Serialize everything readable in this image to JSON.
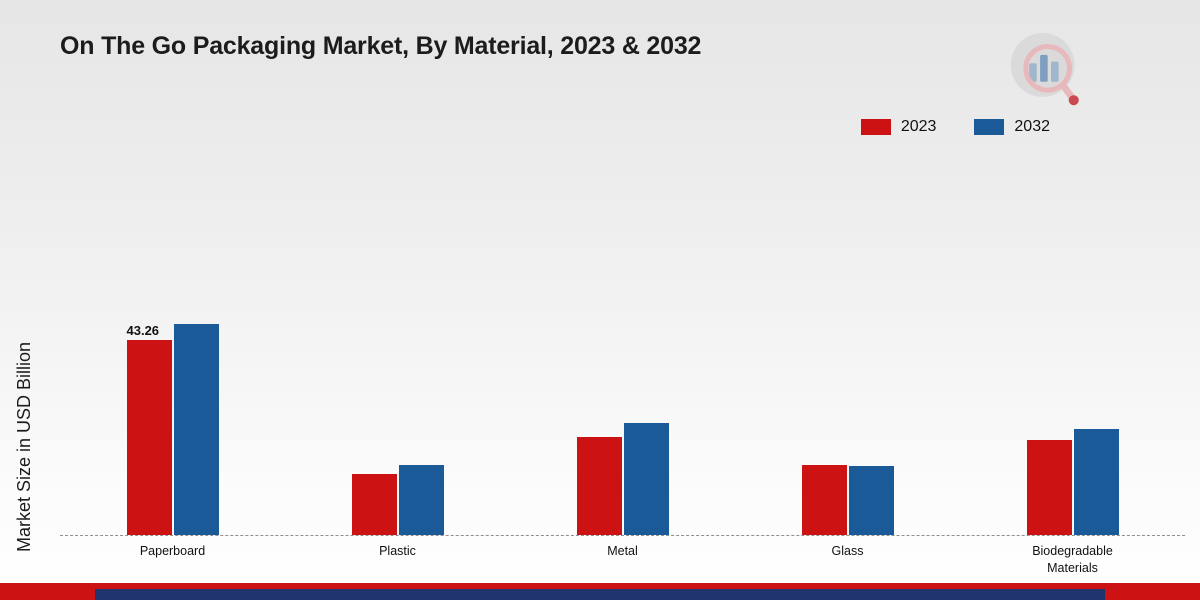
{
  "chart": {
    "title": "On The Go Packaging Market, By Material, 2023 & 2032",
    "ylabel": "Market Size in USD Billion"
  },
  "chart_data": {
    "type": "bar",
    "title": "On The Go Packaging Market, By Material, 2023 & 2032",
    "xlabel": "",
    "ylabel": "Market Size in USD Billion",
    "categories": [
      "Paperboard",
      "Plastic",
      "Metal",
      "Glass",
      "Biodegradable Materials"
    ],
    "series": [
      {
        "name": "2023",
        "color": "#cc1212",
        "values": [
          43.26,
          13.5,
          21.8,
          15.5,
          21.2
        ]
      },
      {
        "name": "2032",
        "color": "#1b5a99",
        "values": [
          46.9,
          15.6,
          24.9,
          15.3,
          23.6
        ]
      }
    ],
    "bar_label": {
      "category": "Paperboard",
      "series": "2023",
      "text": "43.26"
    },
    "ylim": [
      0,
      50
    ],
    "grid": "off",
    "baseline_style": "dashed",
    "legend_position": "top-right"
  },
  "footer": {
    "red_band_color": "#cc1212",
    "navy_band_color": "#20356e"
  }
}
